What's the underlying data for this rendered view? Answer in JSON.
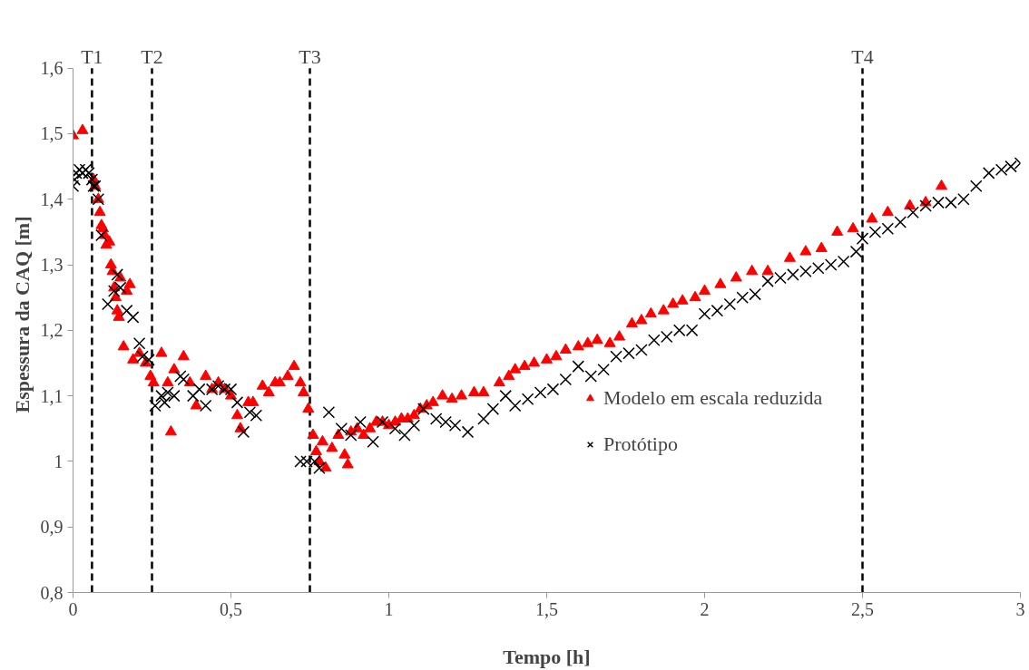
{
  "chart_data": {
    "type": "scatter",
    "xlabel": "Tempo [h]",
    "ylabel": "Espessura da CAQ [m]",
    "xlim": [
      0,
      3
    ],
    "ylim": [
      0.8,
      1.6
    ],
    "xticks": [
      0,
      {
        "value": 0.5,
        "label": "0,5"
      },
      1,
      {
        "value": 1.5,
        "label": "1,5"
      },
      2,
      {
        "value": 2.5,
        "label": "2,5"
      },
      3
    ],
    "yticks": [
      {
        "value": 0.8,
        "label": "0,8"
      },
      {
        "value": 0.9,
        "label": "0,9"
      },
      1,
      {
        "value": 1.1,
        "label": "1,1"
      },
      {
        "value": 1.2,
        "label": "1,2"
      },
      {
        "value": 1.3,
        "label": "1,3"
      },
      {
        "value": 1.4,
        "label": "1,4"
      },
      {
        "value": 1.5,
        "label": "1,5"
      },
      {
        "value": 1.6,
        "label": "1,6"
      }
    ],
    "grid": false,
    "legend": "right",
    "ref_lines": [
      {
        "axis": "x",
        "value": 0.06,
        "label": "T1",
        "color": "#000000",
        "line_style": "dashed"
      },
      {
        "axis": "x",
        "value": 0.25,
        "label": "T2",
        "color": "#000000",
        "line_style": "dashed"
      },
      {
        "axis": "x",
        "value": 0.75,
        "label": "T3",
        "color": "#000000",
        "line_style": "dashed"
      },
      {
        "axis": "x",
        "value": 2.5,
        "label": "T4",
        "color": "#000000",
        "line_style": "dashed"
      }
    ],
    "series": [
      {
        "name": "Modelo em escala reduzida",
        "color": "#ff0000",
        "marker": "triangle",
        "x": [
          0,
          0.03,
          0.065,
          0.07,
          0.08,
          0.085,
          0.09,
          0.095,
          0.1,
          0.105,
          0.115,
          0.12,
          0.125,
          0.13,
          0.135,
          0.14,
          0.145,
          0.15,
          0.17,
          0.18,
          0.16,
          0.19,
          0.21,
          0.23,
          0.245,
          0.255,
          0.28,
          0.3,
          0.31,
          0.32,
          0.35,
          0.37,
          0.39,
          0.42,
          0.44,
          0.46,
          0.48,
          0.5,
          0.52,
          0.53,
          0.555,
          0.57,
          0.6,
          0.62,
          0.64,
          0.655,
          0.68,
          0.7,
          0.72,
          0.73,
          0.745,
          0.76,
          0.77,
          0.78,
          0.79,
          0.8,
          0.82,
          0.84,
          0.86,
          0.87,
          0.88,
          0.9,
          0.92,
          0.94,
          0.96,
          0.98,
          1.0,
          1.02,
          1.04,
          1.06,
          1.08,
          1.1,
          1.12,
          1.14,
          1.17,
          1.2,
          1.23,
          1.27,
          1.3,
          1.35,
          1.38,
          1.4,
          1.43,
          1.46,
          1.5,
          1.53,
          1.56,
          1.6,
          1.63,
          1.66,
          1.7,
          1.73,
          1.77,
          1.8,
          1.83,
          1.87,
          1.9,
          1.93,
          1.97,
          2.0,
          2.05,
          2.1,
          2.15,
          2.2,
          2.27,
          2.32,
          2.37,
          2.42,
          2.47,
          2.53,
          2.58,
          2.65,
          2.7,
          2.75
        ],
        "values": [
          1.497,
          1.505,
          1.43,
          1.42,
          1.4,
          1.38,
          1.36,
          1.355,
          1.345,
          1.33,
          1.335,
          1.3,
          1.29,
          1.265,
          1.25,
          1.23,
          1.22,
          1.28,
          1.26,
          1.27,
          1.175,
          1.155,
          1.165,
          1.15,
          1.13,
          1.12,
          1.165,
          1.12,
          1.045,
          1.14,
          1.16,
          1.12,
          1.085,
          1.13,
          1.11,
          1.12,
          1.11,
          1.1,
          1.07,
          1.05,
          1.09,
          1.09,
          1.115,
          1.105,
          1.12,
          1.12,
          1.13,
          1.145,
          1.12,
          1.105,
          1.08,
          1.04,
          1.015,
          1.0,
          1.03,
          0.99,
          1.02,
          1.04,
          1.01,
          0.995,
          1.045,
          1.05,
          1.04,
          1.05,
          1.06,
          1.06,
          1.055,
          1.06,
          1.065,
          1.065,
          1.07,
          1.08,
          1.085,
          1.09,
          1.1,
          1.095,
          1.1,
          1.105,
          1.105,
          1.12,
          1.13,
          1.14,
          1.145,
          1.15,
          1.155,
          1.16,
          1.17,
          1.175,
          1.18,
          1.185,
          1.18,
          1.19,
          1.21,
          1.215,
          1.225,
          1.23,
          1.24,
          1.245,
          1.25,
          1.26,
          1.27,
          1.28,
          1.29,
          1.29,
          1.31,
          1.32,
          1.325,
          1.35,
          1.355,
          1.37,
          1.38,
          1.39,
          1.395,
          1.42
        ]
      },
      {
        "name": "Protótipo",
        "color": "#000000",
        "marker": "cross",
        "x": [
          0,
          0.005,
          0.01,
          0.02,
          0.03,
          0.04,
          0.05,
          0.06,
          0.065,
          0.07,
          0.08,
          0.09,
          0.11,
          0.13,
          0.14,
          0.15,
          0.17,
          0.19,
          0.21,
          0.22,
          0.24,
          0.26,
          0.28,
          0.29,
          0.3,
          0.32,
          0.34,
          0.35,
          0.38,
          0.4,
          0.42,
          0.44,
          0.46,
          0.48,
          0.5,
          0.52,
          0.54,
          0.56,
          0.58,
          0.72,
          0.74,
          0.765,
          0.78,
          0.81,
          0.85,
          0.88,
          0.91,
          0.95,
          0.98,
          1.02,
          1.05,
          1.08,
          1.11,
          1.15,
          1.18,
          1.21,
          1.25,
          1.3,
          1.33,
          1.37,
          1.4,
          1.44,
          1.48,
          1.52,
          1.56,
          1.6,
          1.64,
          1.68,
          1.72,
          1.76,
          1.8,
          1.84,
          1.88,
          1.92,
          1.96,
          2.0,
          2.04,
          2.08,
          2.12,
          2.16,
          2.2,
          2.24,
          2.28,
          2.32,
          2.36,
          2.4,
          2.44,
          2.48,
          2.5,
          2.54,
          2.58,
          2.62,
          2.66,
          2.7,
          2.74,
          2.78,
          2.82,
          2.86,
          2.9,
          2.94,
          2.97,
          3.0
        ],
        "values": [
          1.42,
          1.43,
          1.44,
          1.445,
          1.44,
          1.445,
          1.44,
          1.43,
          1.42,
          1.42,
          1.4,
          1.345,
          1.24,
          1.26,
          1.285,
          1.265,
          1.23,
          1.22,
          1.18,
          1.16,
          1.155,
          1.085,
          1.1,
          1.09,
          1.105,
          1.1,
          1.13,
          1.125,
          1.1,
          1.11,
          1.085,
          1.11,
          1.115,
          1.11,
          1.11,
          1.09,
          1.045,
          1.075,
          1.07,
          1.0,
          1.0,
          1.0,
          0.99,
          1.075,
          1.05,
          1.04,
          1.06,
          1.03,
          1.06,
          1.05,
          1.04,
          1.055,
          1.08,
          1.065,
          1.06,
          1.055,
          1.045,
          1.065,
          1.08,
          1.1,
          1.085,
          1.095,
          1.105,
          1.11,
          1.125,
          1.145,
          1.13,
          1.14,
          1.16,
          1.165,
          1.17,
          1.185,
          1.19,
          1.2,
          1.2,
          1.225,
          1.23,
          1.24,
          1.25,
          1.255,
          1.275,
          1.28,
          1.285,
          1.29,
          1.295,
          1.3,
          1.305,
          1.32,
          1.34,
          1.35,
          1.355,
          1.365,
          1.38,
          1.39,
          1.395,
          1.395,
          1.4,
          1.42,
          1.44,
          1.445,
          1.45,
          1.455
        ]
      }
    ]
  }
}
